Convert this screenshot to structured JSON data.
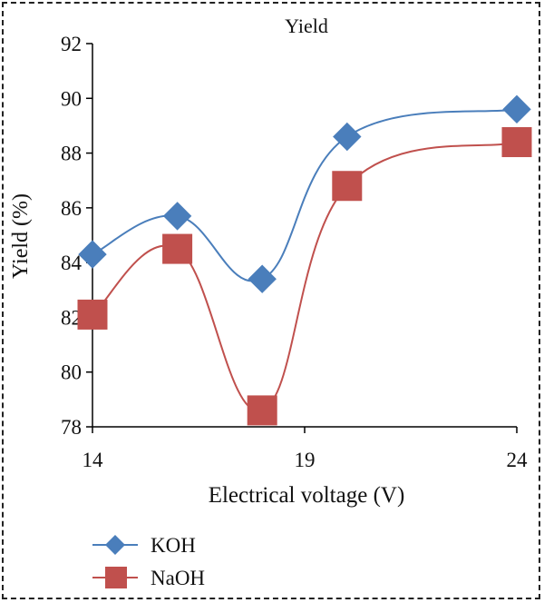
{
  "chart_data": {
    "type": "line",
    "title": "Yield",
    "xlabel": "Electrical voltage (V)",
    "ylabel": "Yield (%)",
    "x": [
      14,
      16,
      18,
      20,
      24
    ],
    "x_ticks": [
      14,
      19,
      24
    ],
    "xlim": [
      14,
      24
    ],
    "y_ticks": [
      78,
      80,
      82,
      84,
      86,
      88,
      90,
      92
    ],
    "ylim": [
      78,
      92
    ],
    "grid": false,
    "legend": "bottom-left",
    "series": [
      {
        "name": "KOH",
        "values": [
          84.3,
          85.7,
          83.4,
          88.6,
          89.6
        ],
        "color": "#4a7ebb",
        "marker": "diamond"
      },
      {
        "name": "NaOH",
        "values": [
          82.1,
          84.5,
          78.6,
          86.8,
          88.4
        ],
        "color": "#c0504d",
        "marker": "square"
      }
    ]
  }
}
